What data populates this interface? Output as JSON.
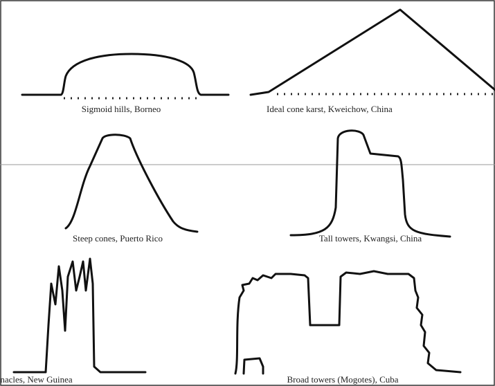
{
  "profiles": [
    {
      "label": "Sigmoid hills, Borneo"
    },
    {
      "label": "Ideal cone karst, Kweichow, China"
    },
    {
      "label": "Steep cones, Puerto Rico"
    },
    {
      "label": "Tall towers, Kwangsi, China"
    },
    {
      "label": "Pinnacles, New Guinea"
    },
    {
      "label": "Broad towers (Mogotes), Cuba"
    }
  ]
}
